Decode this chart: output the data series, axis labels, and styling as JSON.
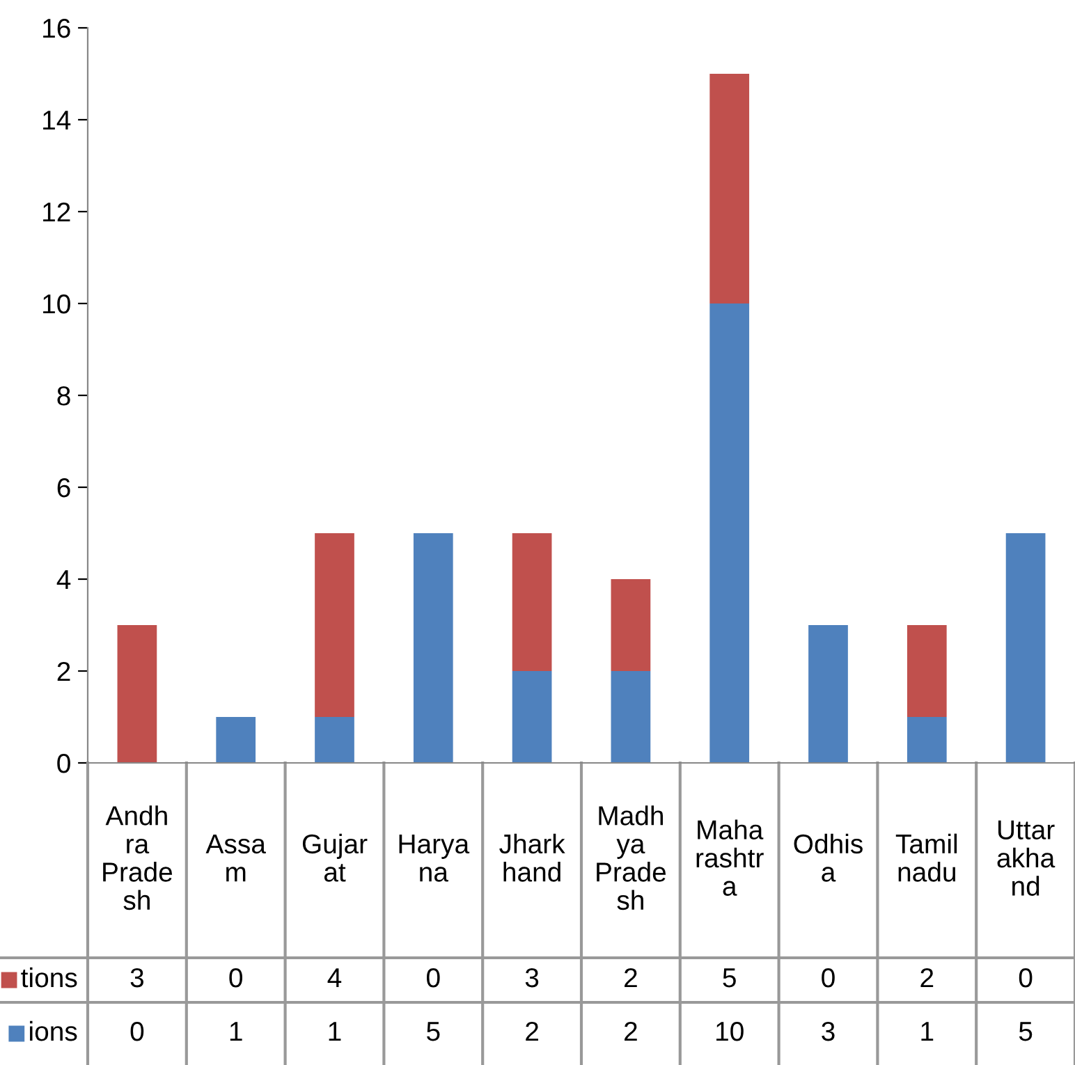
{
  "chart_data": {
    "type": "bar",
    "stacked": true,
    "categories": [
      "Andh\nra\nPrade\nsh",
      "Assa\nm",
      "Gujar\nat",
      "Harya\nna",
      "Jhark\nhand",
      "Madh\nya\nPrade\nsh",
      "Maha\nrashtr\na",
      "Odhis\na",
      "Tamil\nnadu",
      "Uttar\nakha\nnd"
    ],
    "series": [
      {
        "name": "ions",
        "color": "#4f81bd",
        "values": [
          0,
          1,
          1,
          5,
          2,
          2,
          10,
          3,
          1,
          5
        ]
      },
      {
        "name": "tions",
        "color": "#c0504d",
        "values": [
          3,
          0,
          4,
          0,
          3,
          2,
          5,
          0,
          2,
          0
        ]
      }
    ],
    "ylim": [
      0,
      16
    ],
    "yticks": [
      0,
      2,
      4,
      6,
      8,
      10,
      12,
      14,
      16
    ],
    "data_labels": true,
    "grid": false,
    "legend": "bottom left"
  }
}
